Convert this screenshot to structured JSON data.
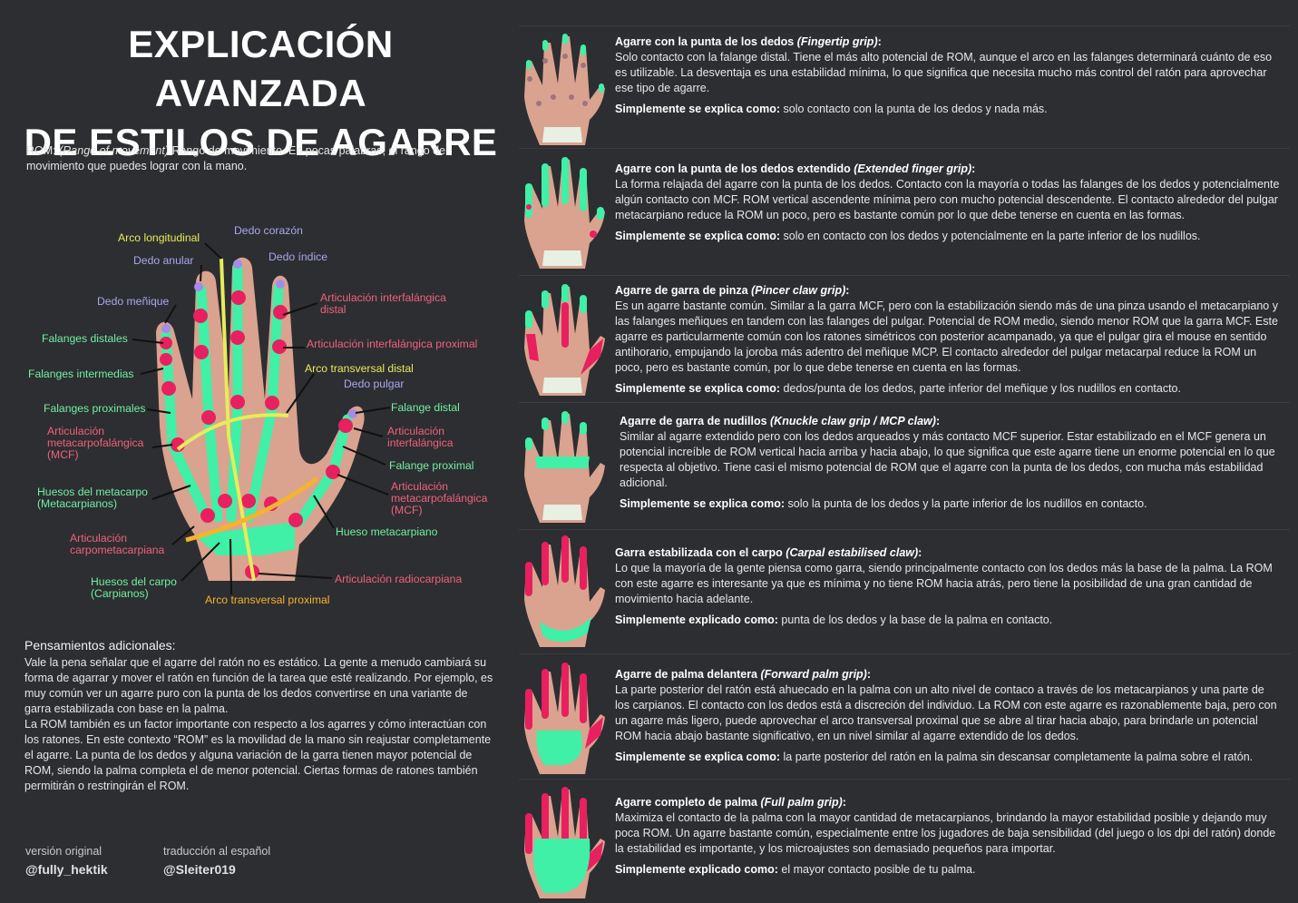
{
  "header": {
    "title_line1": "EXPLICACIÓN AVANZADA",
    "title_line2": "DE ESTILOS DE AGARRE"
  },
  "rom_note": {
    "prefix": "ROM: ",
    "term": "(Range of movement)",
    "text": " Rango de movimiento. En pocas palabras, el rango de movimiento que puedes lograr con la mano."
  },
  "diagram": {
    "labels": {
      "arco_longitudinal": "Arco longitudinal",
      "dedo_corazon": "Dedo corazón",
      "dedo_anular": "Dedo anular",
      "dedo_indice": "Dedo índice",
      "dedo_menique": "Dedo meñique",
      "art_interfalangica_distal": "Articulación interfalángica distal",
      "falanges_distales": "Falanges distales",
      "art_interfalangica_proximal": "Articulación interfalángica proximal",
      "falanges_intermedias": "Falanges intermedias",
      "arco_transversal_distal": "Arco transversal distal",
      "dedo_pulgar": "Dedo pulgar",
      "falanges_proximales": "Falanges proximales",
      "falange_distal": "Falange distal",
      "art_mcf_left": "Articulación metacarpofalángica (MCF)",
      "art_interfalangica": "Articulación interfalángica",
      "falange_proximal": "Falange proximal",
      "huesos_metacarpo": "Huesos del metacarpo (Metacarpianos)",
      "art_mcf_right": "Articulación metacarpofalángica (MCF)",
      "hueso_metacarpiano": "Hueso metacarpiano",
      "art_carpometacarpiana": "Articulación carpometacarpiana",
      "huesos_carpo": "Huesos del carpo (Carpianos)",
      "art_radiocarpiana": "Articulación radiocarpiana",
      "arco_transversal_proximal": "Arco transversal proximal"
    }
  },
  "extra": {
    "title": "Pensamientos adicionales:",
    "p1": "Vale la pena señalar que el agarre del ratón no es estático. La gente a menudo cambiará su forma de agarrar y mover el ratón en función de la tarea que esté realizando. Por ejemplo, es muy común ver un agarre puro con la punta de los dedos convertirse en una variante de garra estabilizada con base en la palma.",
    "p2": "La ROM también es un factor importante con respecto a los agarres y cómo interactúan con los ratones. En este contexto “ROM” es la movilidad de la mano sin reajustar completamente el agarre. La punta de los dedos  y alguna variación de la garra tienen mayor potencial de ROM, siendo la palma completa el de menor potencial. Ciertas formas de ratones también permitirán o restringirán el ROM."
  },
  "credits": {
    "original_label": "versión original",
    "original_handle": "@fully_hektik",
    "translation_label": "traducción al español",
    "translation_handle": "@Sleiter019"
  },
  "grips": [
    {
      "title": "Agarre con la punta de los dedos ",
      "title_en": "(Fingertip grip)",
      "title_end": ":",
      "desc": "Solo contacto con la falange distal. Tiene el más alto potencial de ROM, aunque el arco en las falanges determinará cuánto de eso es utilizable. La desventaja es una estabilidad mínima, lo que significa que necesita mucho más control del ratón para aprovechar ese tipo de agarre.",
      "simple_label": "Simplemente se explica como:",
      "simple": " solo contacto con la punta de los dedos y nada más."
    },
    {
      "title": "Agarre con la punta de los dedos extendido ",
      "title_en": "(Extended finger grip)",
      "title_end": ":",
      "desc": "La forma relajada del agarre con la punta de los dedos. Contacto con la mayoría o todas las falanges de los dedos y potencialmente algún contacto con MCF. ROM vertical ascendente mínima pero con mucho potencial descendente. El contacto alrededor del pulgar metacarpiano reduce la ROM un poco, pero es bastante común por lo que debe tenerse en cuenta en las formas.",
      "simple_label": "Simplemente se explica como:",
      "simple": " solo en contacto con los dedos y potencialmente en la parte inferior de los nudillos."
    },
    {
      "title": "Agarre de garra de pinza ",
      "title_en": "(Pincer claw grip)",
      "title_end": ":",
      "desc": "Es un agarre bastante común. Similar a la garra MCF, pero con la estabilización siendo más de una pinza usando el metacarpiano y las falanges meñiques en tandem con las falanges del pulgar. Potencial de ROM medio, siendo menor ROM que la garra MCF. Este agarre es particularmente común con los ratones simétricos con  posterior acampanado, ya que el pulgar gira el mouse en sentido antihorario, empujando la joroba más adentro del meñique MCP. El contacto alrededor del pulgar metacarpal reduce la ROM un poco, pero es bastante común, por lo que debe tenerse en cuenta en las formas.",
      "simple_label": "Simplemente se explica como:",
      "simple": " dedos/punta de los dedos, parte inferior del meñique y los nudillos en contacto."
    },
    {
      "title": "Agarre de garra de nudillos ",
      "title_en": "(Knuckle claw grip / MCP claw)",
      "title_end": ":",
      "desc": "Similar al agarre extendido pero con los dedos arqueados y más contacto MCF superior. Estar estabilizado en el MCF genera un potencial increíble de ROM vertical hacia arriba y hacia abajo, lo que significa que este agarre tiene un enorme potencial en lo que respecta al objetivo. Tiene casi el mismo potencial de ROM que el agarre con la punta de los dedos, con mucha más estabilidad adicional.",
      "simple_label": "Simplemente se explica como:",
      "simple": " solo la punta de los dedos y la parte inferior de los nudillos en contacto."
    },
    {
      "title": "Garra estabilizada con el carpo ",
      "title_en": "(Carpal estabilised claw)",
      "title_end": ":",
      "desc": "Lo que la mayoría de la gente piensa como garra, siendo principalmente contacto con los dedos más la base de la palma. La ROM con este agarre es interesante ya que es mínima y no tiene ROM hacia atrás, pero tiene la posibilidad de una gran cantidad de movimiento hacia adelante.",
      "simple_label": "Simplemente explicado como:",
      "simple": " punta de los dedos y la base de la palma en contacto."
    },
    {
      "title": "Agarre de palma delantera ",
      "title_en": "(Forward palm grip)",
      "title_end": ":",
      "desc": "La parte posterior del ratón está ahuecado en la palma con un alto nivel de contaco a través de los metacarpianos y una parte de los carpianos. El contacto con los dedos está a discreción del individuo. La ROM con este agarre es razonablemente baja, pero con un agarre más ligero, puede aprovechar el arco transversal proximal que se abre al tirar hacia abajo, para brindarle un potencial ROM hacia abajo bastante significativo, en un nivel similar al agarre extendido de los dedos.",
      "simple_label": "Simplemente se explica como:",
      "simple": " la parte posterior del ratón en la palma sin descansar completamente la palma sobre el ratón."
    },
    {
      "title": "Agarre completo de palma ",
      "title_en": "(Full palm grip)",
      "title_end": ":",
      "desc": "Maximiza el contacto de la palma con la mayor cantidad de metacarpianos, brindando la mayor estabilidad posible y dejando muy poca ROM. Un agarre bastante común, especialmente entre los jugadores de baja sensibilidad (del juego o los dpi del ratón) donde la estabilidad es importante, y los microajustes son demasiado pequeños para importar.",
      "simple_label": "Simplemente explicado como:",
      "simple": " el mayor contacto posible de tu palma."
    }
  ],
  "colors": {
    "background": "#2d2e31",
    "skin": "#d9a38f",
    "bone_green": "#3ff0a6",
    "joint_pink": "#e8205f",
    "fingertip_purple": "#a58be8",
    "arc_yellow": "#e6ec5a",
    "arc_orange": "#f5b32e"
  }
}
